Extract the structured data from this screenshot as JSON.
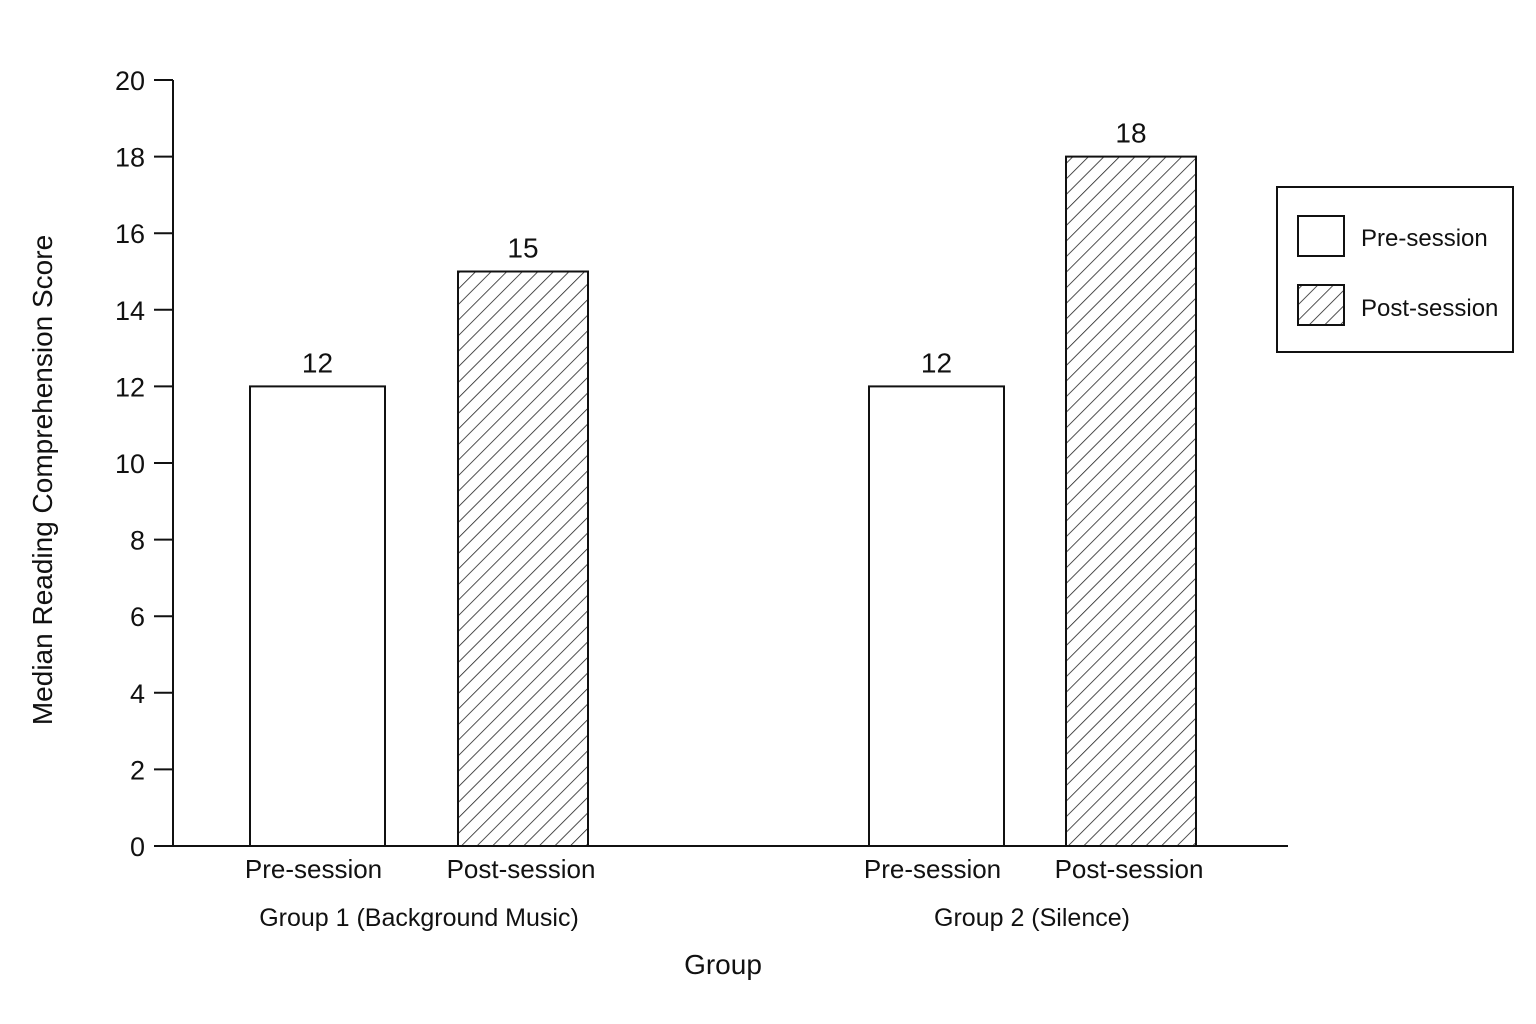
{
  "chart_data": {
    "type": "bar",
    "title": "",
    "xlabel": "Group",
    "ylabel": "Median Reading Comprehension Score",
    "ylim": [
      0,
      20
    ],
    "yticks": [
      "0",
      "2",
      "4",
      "6",
      "8",
      "10",
      "12",
      "14",
      "16",
      "18",
      "20"
    ],
    "grid": false,
    "legend_position": "right",
    "groups": [
      {
        "label": "Group 1 (Background Music)",
        "bars": [
          {
            "category": "Pre-session",
            "value": 12,
            "label": "12"
          },
          {
            "category": "Post-session",
            "value": 15,
            "label": "15"
          }
        ]
      },
      {
        "label": "Group 2 (Silence)",
        "bars": [
          {
            "category": "Pre-session",
            "value": 12,
            "label": "12"
          },
          {
            "category": "Post-session",
            "value": 18,
            "label": "18"
          }
        ]
      }
    ],
    "series": [
      {
        "name": "Pre-session",
        "values": [
          12,
          12
        ],
        "fill": "#ffffff",
        "pattern": "none"
      },
      {
        "name": "Post-session",
        "values": [
          15,
          18
        ],
        "fill": "#ffffff",
        "pattern": "diagonal-hatch"
      }
    ],
    "legend": [
      "Pre-session",
      "Post-session"
    ]
  }
}
